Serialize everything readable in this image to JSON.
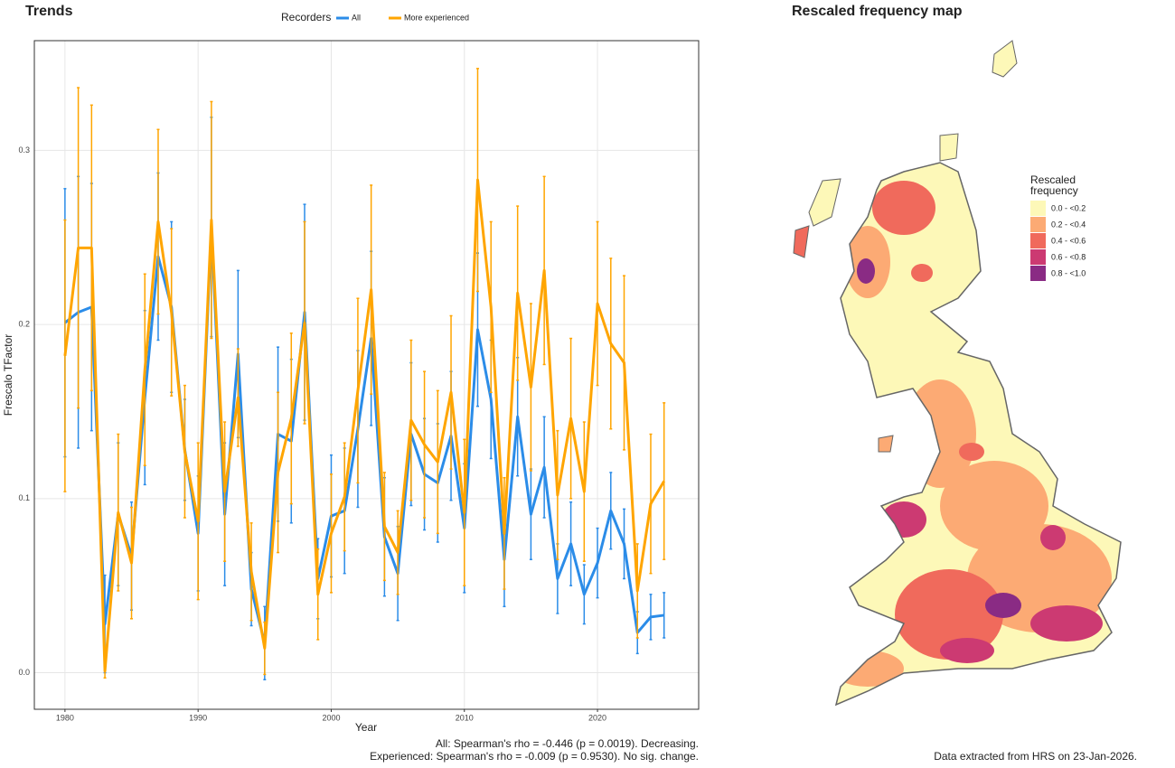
{
  "chart_data": {
    "type": "line",
    "title": "Trends",
    "x_label": "Year",
    "y_label": "Frescalo TFactor",
    "legend_title": "Recorders",
    "x": [
      1980,
      1981,
      1982,
      1983,
      1984,
      1985,
      1986,
      1987,
      1988,
      1989,
      1990,
      1991,
      1992,
      1993,
      1994,
      1995,
      1996,
      1997,
      1998,
      1999,
      2000,
      2001,
      2002,
      2003,
      2004,
      2005,
      2006,
      2007,
      2008,
      2009,
      2010,
      2011,
      2012,
      2013,
      2014,
      2015,
      2016,
      2017,
      2018,
      2019,
      2020,
      2021,
      2022,
      2023,
      2024,
      2025
    ],
    "series": [
      {
        "name": "All",
        "color": "#2b8ce8",
        "values": [
          0.201,
          0.207,
          0.21,
          0.028,
          0.091,
          0.067,
          0.158,
          0.239,
          0.21,
          0.128,
          0.08,
          0.256,
          0.091,
          0.183,
          0.048,
          0.017,
          0.137,
          0.133,
          0.207,
          0.054,
          0.09,
          0.093,
          0.14,
          0.192,
          0.078,
          0.057,
          0.137,
          0.114,
          0.109,
          0.136,
          0.083,
          0.197,
          0.157,
          0.065,
          0.147,
          0.091,
          0.118,
          0.054,
          0.074,
          0.045,
          0.063,
          0.093,
          0.074,
          0.023,
          0.032,
          0.033
        ],
        "errors": [
          0.077,
          0.078,
          0.071,
          0.028,
          0.041,
          0.031,
          0.05,
          0.048,
          0.049,
          0.029,
          0.033,
          0.063,
          0.041,
          0.048,
          0.021,
          0.021,
          0.05,
          0.047,
          0.062,
          0.023,
          0.035,
          0.036,
          0.045,
          0.05,
          0.034,
          0.027,
          0.041,
          0.032,
          0.034,
          0.037,
          0.037,
          0.044,
          0.034,
          0.027,
          0.034,
          0.026,
          0.029,
          0.02,
          0.024,
          0.017,
          0.02,
          0.022,
          0.02,
          0.012,
          0.013,
          0.013
        ]
      },
      {
        "name": "More experienced",
        "color": "#ffa500",
        "values": [
          0.182,
          0.244,
          0.244,
          0.001,
          0.092,
          0.063,
          0.174,
          0.259,
          0.207,
          0.127,
          0.087,
          0.26,
          0.104,
          0.158,
          0.058,
          0.014,
          0.115,
          0.146,
          0.201,
          0.045,
          0.08,
          0.101,
          0.162,
          0.22,
          0.084,
          0.069,
          0.145,
          0.131,
          0.121,
          0.161,
          0.092,
          0.283,
          0.21,
          0.08,
          0.218,
          0.164,
          0.231,
          0.102,
          0.146,
          0.104,
          0.212,
          0.189,
          0.178,
          0.047,
          0.097,
          0.11
        ],
        "errors": [
          0.078,
          0.092,
          0.082,
          0.004,
          0.045,
          0.032,
          0.055,
          0.053,
          0.048,
          0.038,
          0.045,
          0.068,
          0.04,
          0.028,
          0.028,
          0.015,
          0.046,
          0.049,
          0.058,
          0.026,
          0.034,
          0.031,
          0.053,
          0.06,
          0.031,
          0.024,
          0.046,
          0.042,
          0.041,
          0.044,
          0.042,
          0.064,
          0.049,
          0.032,
          0.05,
          0.048,
          0.054,
          0.037,
          0.046,
          0.04,
          0.047,
          0.049,
          0.05,
          0.027,
          0.04,
          0.045
        ]
      }
    ],
    "xlim": [
      1977.7,
      2027.6
    ],
    "xticks": [
      1980,
      1990,
      2000,
      2010,
      2020
    ],
    "ylim": [
      -0.021,
      0.363
    ],
    "yticks": [
      {
        "value": 0,
        "label": "0.0"
      },
      0.1,
      0.2,
      0.3
    ],
    "grid": true,
    "notes": [
      "All: Spearman's rho = -0.446 (p = 0.0019). Decreasing.",
      "Experienced: Spearman's rho = -0.009 (p = 0.9530). No sig. change."
    ]
  },
  "map": {
    "title": "Rescaled frequency map",
    "legend_title": [
      "Rescaled",
      "frequency"
    ],
    "legend": [
      {
        "label": "0.0 - <0.2",
        "color": "#fdf8b8"
      },
      {
        "label": "0.2 - <0.4",
        "color": "#fcaa74"
      },
      {
        "label": "0.4 - <0.6",
        "color": "#f06a5c"
      },
      {
        "label": "0.6 - <0.8",
        "color": "#cc3a72"
      },
      {
        "label": "0.8 - <1.0",
        "color": "#8a2b84"
      }
    ],
    "footer": "Data extracted from HRS on 23-Jan-2026."
  }
}
